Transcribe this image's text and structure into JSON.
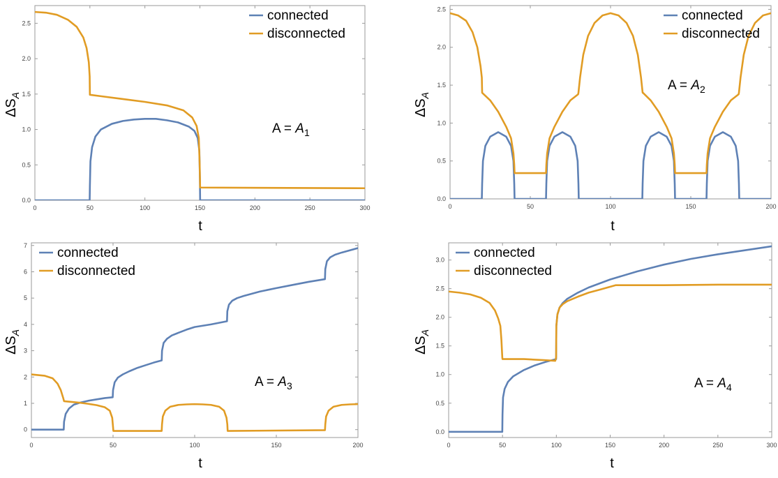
{
  "colors": {
    "connected": "#5E81B5",
    "disconnected": "#E19C24",
    "frame": "#9a9a9a"
  },
  "chart_data": [
    {
      "type": "line",
      "xlabel": "t",
      "ylabel": "ΔS",
      "ylabel_sub": "A",
      "annotation": {
        "prefix": "A = ",
        "italic": "A",
        "sub": "1"
      },
      "legend_position": "top-right",
      "xlim": [
        0,
        300
      ],
      "ylim": [
        0,
        2.75
      ],
      "xticks": [
        0,
        50,
        100,
        150,
        200,
        250,
        300
      ],
      "xtick_labels": [
        "0",
        "50",
        "100",
        "150",
        "200",
        "250",
        "300"
      ],
      "yticks": [
        0,
        0.5,
        1,
        1.5,
        2,
        2.5
      ],
      "ytick_labels": [
        "0.0",
        "0.5",
        "1.0",
        "1.5",
        "2.0",
        "2.5"
      ],
      "series": [
        {
          "name": "connected",
          "x": [
            0,
            49.8,
            50,
            50.5,
            52,
            55,
            60,
            70,
            80,
            90,
            100,
            110,
            120,
            130,
            140,
            145,
            148,
            149.5,
            150,
            150.2,
            300
          ],
          "y": [
            0,
            0,
            0.2,
            0.55,
            0.75,
            0.9,
            1.0,
            1.08,
            1.12,
            1.14,
            1.15,
            1.15,
            1.13,
            1.1,
            1.04,
            0.98,
            0.88,
            0.7,
            0.3,
            0,
            0
          ]
        },
        {
          "name": "disconnected",
          "x": [
            0,
            10,
            20,
            30,
            38,
            44,
            47,
            49,
            49.8,
            50,
            60,
            80,
            100,
            120,
            135,
            143,
            147,
            149,
            149.8,
            150.2,
            300
          ],
          "y": [
            2.66,
            2.65,
            2.62,
            2.55,
            2.45,
            2.3,
            2.15,
            1.95,
            1.75,
            1.49,
            1.47,
            1.43,
            1.39,
            1.34,
            1.27,
            1.17,
            1.05,
            0.88,
            0.5,
            0.18,
            0.17
          ]
        }
      ]
    },
    {
      "type": "line",
      "xlabel": "t",
      "ylabel": "ΔS",
      "ylabel_sub": "A",
      "annotation": {
        "prefix": "A = ",
        "italic": "A",
        "sub": "2"
      },
      "legend_position": "top-right",
      "xlim": [
        0,
        200
      ],
      "ylim": [
        0,
        2.55
      ],
      "xticks": [
        0,
        50,
        100,
        150,
        200
      ],
      "xtick_labels": [
        "0",
        "50",
        "100",
        "150",
        "200"
      ],
      "yticks": [
        0,
        0.5,
        1,
        1.5,
        2,
        2.5
      ],
      "ytick_labels": [
        "0.0",
        "0.5",
        "1.0",
        "1.5",
        "2.0",
        "2.5"
      ],
      "series": [
        {
          "name": "connected",
          "x": [
            0,
            19.8,
            20,
            20.5,
            22,
            25,
            30,
            35,
            38,
            39.5,
            40,
            40.2,
            59.8,
            60,
            60.5,
            62,
            65,
            70,
            75,
            78,
            79.5,
            80,
            80.2,
            119.8,
            120,
            120.5,
            122,
            125,
            130,
            135,
            138,
            139.5,
            140,
            140.2,
            159.8,
            160,
            160.5,
            162,
            165,
            170,
            175,
            178,
            179.5,
            180,
            180.2,
            200
          ],
          "y": [
            0,
            0,
            0.2,
            0.5,
            0.7,
            0.82,
            0.88,
            0.82,
            0.7,
            0.5,
            0.2,
            0,
            0,
            0.2,
            0.5,
            0.7,
            0.82,
            0.88,
            0.82,
            0.7,
            0.5,
            0.2,
            0,
            0,
            0.2,
            0.5,
            0.7,
            0.82,
            0.88,
            0.82,
            0.7,
            0.5,
            0.2,
            0,
            0,
            0.2,
            0.5,
            0.7,
            0.82,
            0.88,
            0.82,
            0.7,
            0.5,
            0.2,
            0,
            0
          ]
        },
        {
          "name": "disconnected",
          "x": [
            0,
            5,
            10,
            14,
            17,
            19,
            19.8,
            20,
            25,
            30,
            35,
            38,
            39.5,
            40,
            40.2,
            59.8,
            60,
            60.5,
            62,
            65,
            70,
            75,
            79.8,
            80,
            81,
            83,
            86,
            90,
            95,
            100,
            105,
            110,
            114,
            117,
            119,
            120,
            120.2,
            125,
            130,
            135,
            138,
            139.5,
            140,
            140.2,
            159.8,
            160,
            160.5,
            162,
            165,
            170,
            175,
            179.8,
            180,
            181,
            183,
            186,
            190,
            195,
            200
          ],
          "y": [
            2.45,
            2.42,
            2.35,
            2.2,
            2.0,
            1.75,
            1.6,
            1.4,
            1.3,
            1.15,
            0.95,
            0.8,
            0.6,
            0.45,
            0.34,
            0.34,
            0.45,
            0.6,
            0.8,
            0.95,
            1.15,
            1.3,
            1.38,
            1.4,
            1.6,
            1.9,
            2.15,
            2.32,
            2.42,
            2.45,
            2.42,
            2.32,
            2.15,
            1.9,
            1.6,
            1.4,
            1.4,
            1.3,
            1.15,
            0.95,
            0.8,
            0.6,
            0.45,
            0.34,
            0.34,
            0.45,
            0.6,
            0.8,
            0.95,
            1.15,
            1.3,
            1.38,
            1.4,
            1.6,
            1.9,
            2.15,
            2.32,
            2.42,
            2.45
          ]
        }
      ]
    },
    {
      "type": "line",
      "xlabel": "t",
      "ylabel": "ΔS",
      "ylabel_sub": "A",
      "annotation": {
        "prefix": "A = ",
        "italic": "A",
        "sub": "3"
      },
      "legend_position": "top-left",
      "xlim": [
        0,
        200
      ],
      "ylim": [
        -0.3,
        7.1
      ],
      "xticks": [
        0,
        50,
        100,
        150,
        200
      ],
      "xtick_labels": [
        "0",
        "50",
        "100",
        "150",
        "200"
      ],
      "yticks": [
        0,
        1,
        2,
        3,
        4,
        5,
        6,
        7
      ],
      "ytick_labels": [
        "0",
        "1",
        "2",
        "3",
        "4",
        "5",
        "6",
        "7"
      ],
      "series": [
        {
          "name": "connected",
          "x": [
            0,
            19.8,
            20,
            21,
            23,
            26,
            30,
            35,
            40,
            45,
            49.8,
            50,
            51,
            53,
            56,
            60,
            65,
            70,
            75,
            79.8,
            80,
            81,
            83,
            86,
            90,
            95,
            100,
            110,
            119.8,
            120,
            121,
            123,
            126,
            130,
            140,
            150,
            160,
            170,
            179.8,
            180,
            181,
            183,
            186,
            190,
            200
          ],
          "y": [
            0,
            0,
            0.3,
            0.6,
            0.8,
            0.95,
            1.03,
            1.1,
            1.15,
            1.2,
            1.23,
            1.5,
            1.8,
            1.98,
            2.1,
            2.22,
            2.35,
            2.45,
            2.55,
            2.63,
            3.0,
            3.3,
            3.45,
            3.58,
            3.68,
            3.8,
            3.9,
            4.0,
            4.12,
            4.5,
            4.75,
            4.9,
            5.0,
            5.08,
            5.25,
            5.38,
            5.5,
            5.62,
            5.72,
            6.1,
            6.4,
            6.55,
            6.65,
            6.73,
            6.9
          ]
        },
        {
          "name": "disconnected",
          "x": [
            0,
            8,
            13,
            16,
            18,
            19.5,
            20,
            25,
            30,
            35,
            40,
            45,
            48,
            49.5,
            50,
            50.2,
            79.8,
            80,
            80.5,
            82,
            85,
            90,
            95,
            100,
            105,
            110,
            115,
            118,
            119.5,
            120,
            120.2,
            179.8,
            180,
            180.5,
            182,
            185,
            190,
            195,
            200
          ],
          "y": [
            2.1,
            2.05,
            1.95,
            1.75,
            1.5,
            1.2,
            1.08,
            1.05,
            1.02,
            0.98,
            0.93,
            0.85,
            0.72,
            0.45,
            0.1,
            -0.05,
            -0.05,
            0.2,
            0.5,
            0.72,
            0.87,
            0.94,
            0.96,
            0.97,
            0.96,
            0.94,
            0.87,
            0.72,
            0.45,
            0.2,
            -0.05,
            -0.02,
            0.2,
            0.5,
            0.72,
            0.87,
            0.94,
            0.96,
            0.97
          ]
        }
      ]
    },
    {
      "type": "line",
      "xlabel": "t",
      "ylabel": "ΔS",
      "ylabel_sub": "A",
      "annotation": {
        "prefix": "A = ",
        "italic": "A",
        "sub": "4"
      },
      "legend_position": "top-left",
      "xlim": [
        0,
        300
      ],
      "ylim": [
        -0.1,
        3.3
      ],
      "xticks": [
        0,
        50,
        100,
        150,
        200,
        250,
        300
      ],
      "xtick_labels": [
        "0",
        "50",
        "100",
        "150",
        "200",
        "250",
        "300"
      ],
      "yticks": [
        0,
        0.5,
        1,
        1.5,
        2,
        2.5,
        3
      ],
      "ytick_labels": [
        "0.0",
        "0.5",
        "1.0",
        "1.5",
        "2.0",
        "2.5",
        "3.0"
      ],
      "series": [
        {
          "name": "connected",
          "x": [
            0,
            49.8,
            50,
            50.5,
            52,
            55,
            60,
            70,
            80,
            90,
            99.8,
            100,
            101,
            103,
            106,
            110,
            120,
            130,
            150,
            175,
            200,
            225,
            250,
            275,
            300
          ],
          "y": [
            0,
            0,
            0.3,
            0.6,
            0.75,
            0.87,
            0.97,
            1.08,
            1.16,
            1.22,
            1.27,
            1.85,
            2.05,
            2.17,
            2.25,
            2.32,
            2.43,
            2.52,
            2.66,
            2.8,
            2.92,
            3.02,
            3.1,
            3.17,
            3.24
          ]
        },
        {
          "name": "disconnected",
          "x": [
            0,
            10,
            20,
            30,
            38,
            43,
            46,
            48,
            49,
            49.8,
            50,
            60,
            70,
            80,
            90,
            99,
            99.8,
            100,
            101,
            103,
            106,
            110,
            120,
            130,
            140,
            155,
            200,
            250,
            300
          ],
          "y": [
            2.45,
            2.43,
            2.4,
            2.34,
            2.25,
            2.12,
            1.98,
            1.85,
            1.6,
            1.3,
            1.27,
            1.27,
            1.27,
            1.26,
            1.25,
            1.24,
            1.3,
            1.85,
            2.05,
            2.17,
            2.23,
            2.28,
            2.36,
            2.43,
            2.48,
            2.56,
            2.56,
            2.57,
            2.57
          ]
        }
      ]
    }
  ]
}
